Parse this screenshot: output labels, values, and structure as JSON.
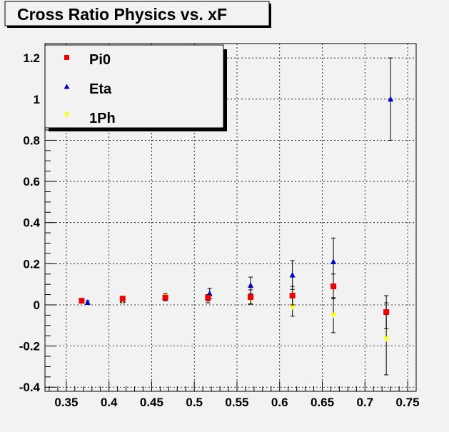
{
  "chart_data": {
    "type": "scatter",
    "title": "Cross Ratio Physics vs. xF",
    "xlabel": "",
    "ylabel": "",
    "xlim": [
      0.325,
      0.76
    ],
    "ylim": [
      -0.42,
      1.27
    ],
    "grid": true,
    "legend_position": "top-left",
    "x_ticks": [
      0.35,
      0.4,
      0.45,
      0.5,
      0.55,
      0.6,
      0.65,
      0.7,
      0.75
    ],
    "x_tick_labels": [
      "0.35",
      "0.4",
      "0.45",
      "0.5",
      "0.55",
      "0.6",
      "0.65",
      "0.7",
      "0.75"
    ],
    "y_ticks": [
      -0.4,
      -0.2,
      0,
      0.2,
      0.4,
      0.6,
      0.8,
      1,
      1.2
    ],
    "y_tick_labels": [
      "-0.4",
      "-0.2",
      "0",
      "0.2",
      "0.4",
      "0.6",
      "0.8",
      "1",
      "1.2"
    ],
    "series": [
      {
        "name": "Pi0",
        "color": "#ee0000",
        "marker": "square",
        "x": [
          0.368,
          0.416,
          0.466,
          0.516,
          0.566,
          0.615,
          0.663,
          0.725
        ],
        "y": [
          0.02,
          0.03,
          0.035,
          0.035,
          0.038,
          0.045,
          0.09,
          -0.035
        ],
        "err": [
          0.01,
          0.01,
          0.012,
          0.015,
          0.035,
          0.045,
          0.06,
          0.08
        ]
      },
      {
        "name": "Eta",
        "color": "#0000cc",
        "marker": "triangle-up",
        "x": [
          0.375,
          0.416,
          0.466,
          0.518,
          0.566,
          0.615,
          0.663,
          0.73
        ],
        "y": [
          0.012,
          0.022,
          0.035,
          0.055,
          0.095,
          0.145,
          0.21,
          1.0
        ],
        "err": [
          0.008,
          0.01,
          0.015,
          0.025,
          0.04,
          0.07,
          0.115,
          0.2
        ]
      },
      {
        "name": "1Ph",
        "color": "#ffff00",
        "marker": "triangle-down",
        "x": [
          0.368,
          0.416,
          0.466,
          0.516,
          0.566,
          0.615,
          0.663,
          0.725
        ],
        "y": [
          0.02,
          0.02,
          0.04,
          0.03,
          0.025,
          -0.01,
          -0.05,
          -0.165
        ],
        "err": [
          0.008,
          0.01,
          0.015,
          0.02,
          0.02,
          0.045,
          0.085,
          0.175
        ]
      }
    ]
  }
}
